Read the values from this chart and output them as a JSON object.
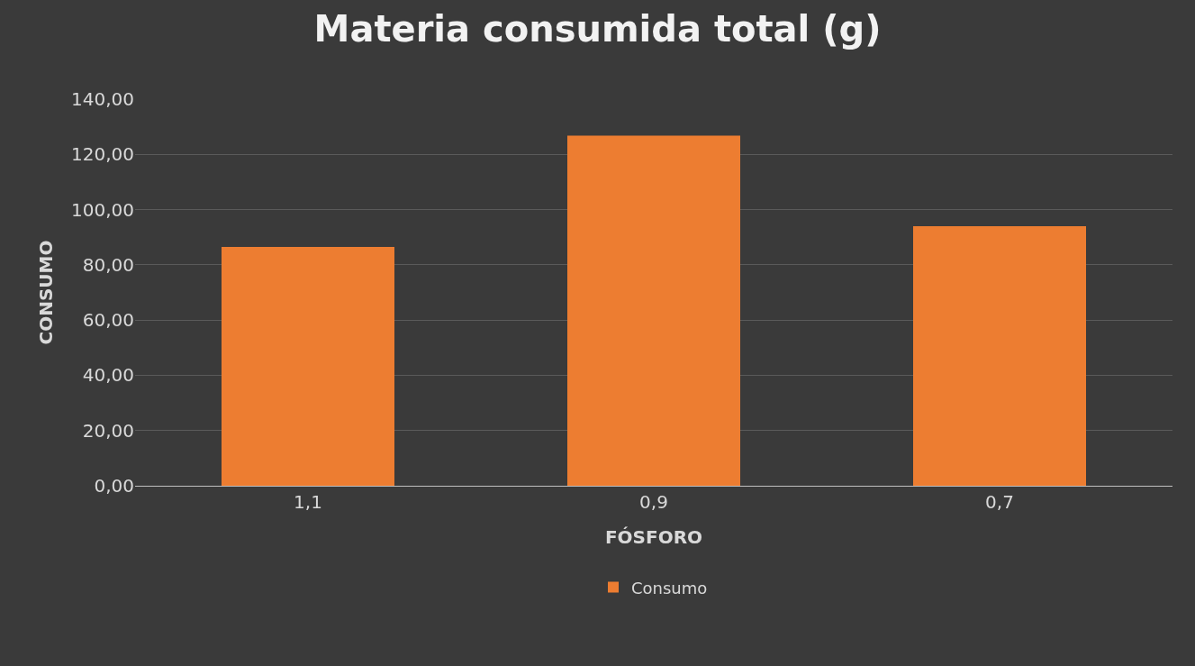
{
  "chart_data": {
    "type": "bar",
    "title": "Materia consumida total (g)",
    "xlabel": "FÓSFORO",
    "ylabel": "CONSUMO",
    "categories": [
      "1,1",
      "0,9",
      "0,7"
    ],
    "series": [
      {
        "name": "Consumo",
        "color": "#ed7d31",
        "values": [
          86.5,
          126.8,
          94
        ]
      }
    ],
    "ylim": [
      0,
      140
    ],
    "yticks": [
      {
        "value": 0,
        "label": "0,00"
      },
      {
        "value": 20,
        "label": "20,00"
      },
      {
        "value": 40,
        "label": "40,00"
      },
      {
        "value": 60,
        "label": "60,00"
      },
      {
        "value": 80,
        "label": "80,00"
      },
      {
        "value": 100,
        "label": "100,00"
      },
      {
        "value": 120,
        "label": "120,00"
      },
      {
        "value": 140,
        "label": "140,00"
      }
    ],
    "grid": "y",
    "legend": "bottom"
  }
}
